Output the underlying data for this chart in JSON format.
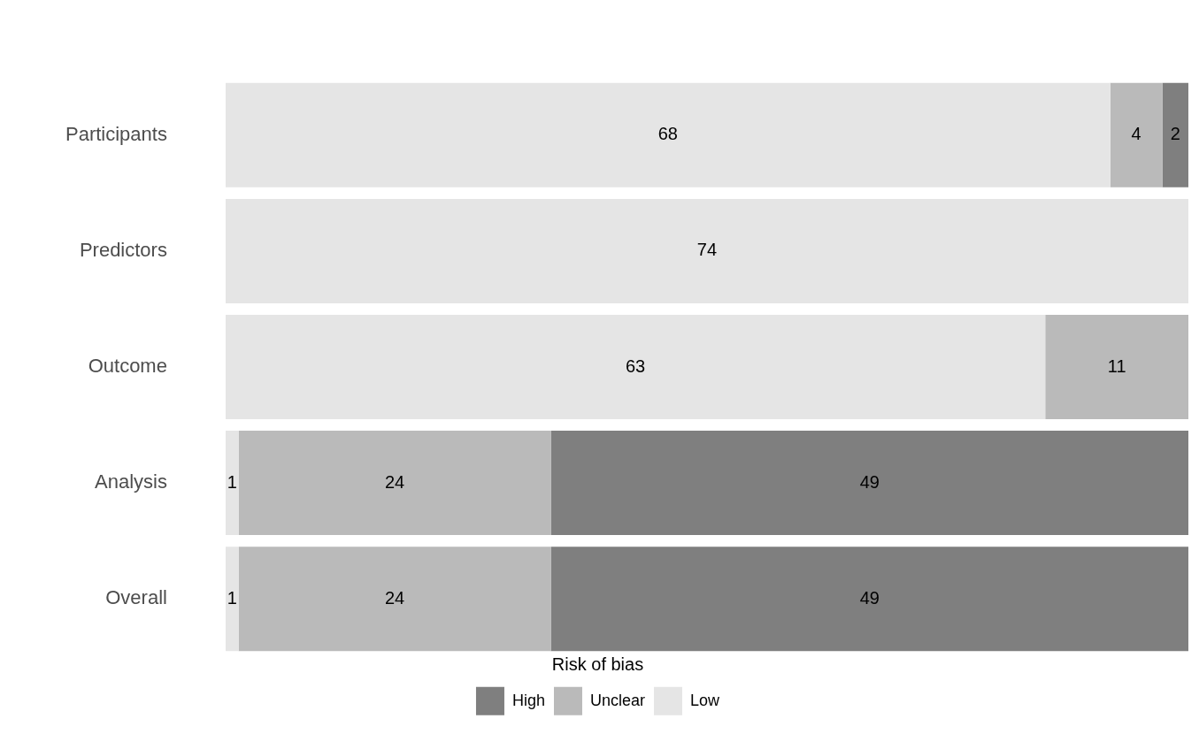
{
  "chart_data": {
    "type": "bar",
    "orientation": "horizontal",
    "stacked": true,
    "categories": [
      "Participants",
      "Predictors",
      "Outcome",
      "Analysis",
      "Overall"
    ],
    "series": [
      {
        "name": "Low",
        "color": "#e5e5e5",
        "values": [
          68,
          74,
          63,
          1,
          1
        ],
        "value_labels": [
          "68",
          "74",
          "63",
          "1",
          "1"
        ]
      },
      {
        "name": "Unclear",
        "color": "#bababa",
        "values": [
          4,
          0,
          11,
          24,
          24
        ],
        "value_labels": [
          "4",
          null,
          "11",
          "24",
          "24"
        ]
      },
      {
        "name": "High",
        "color": "#7f7f7f",
        "values": [
          2,
          0,
          0,
          49,
          49
        ],
        "value_labels": [
          "2",
          null,
          null,
          "49",
          "49"
        ]
      }
    ],
    "xlim": [
      0,
      74
    ],
    "tick_labels": "y",
    "grid": false,
    "legend": "bottom",
    "legend_title": "Risk of bias"
  }
}
